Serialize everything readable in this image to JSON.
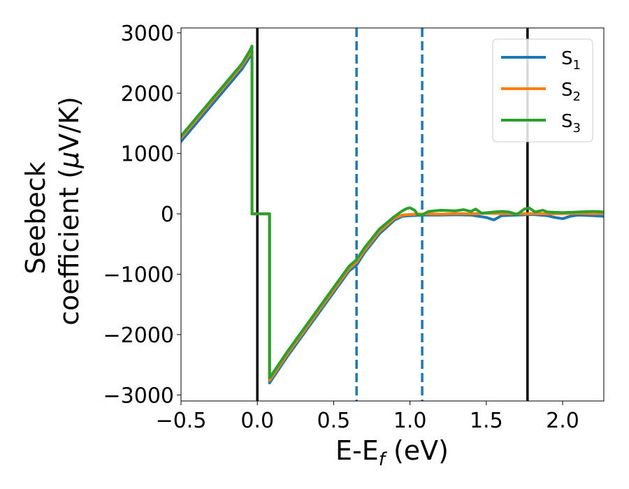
{
  "chart_data": {
    "type": "line",
    "xlabel": "E-E",
    "xlabel_sub": "f",
    "xlabel_unit": " (eV)",
    "ylabel_line1": "Seebeck",
    "ylabel_line2": "coefficient  (",
    "ylabel_mu": "μ",
    "ylabel_unit": "V/K)",
    "xlim": [
      -0.5,
      2.27
    ],
    "ylim": [
      -3100,
      3080
    ],
    "xticks": [
      -0.5,
      0.0,
      0.5,
      1.0,
      1.5,
      2.0
    ],
    "xtick_labels": [
      "−0.5",
      "0.0",
      "0.5",
      "1.0",
      "1.5",
      "2.0"
    ],
    "yticks": [
      -3000,
      -2000,
      -1000,
      0,
      1000,
      2000,
      3000
    ],
    "ytick_labels": [
      "−3000",
      "−2000",
      "−1000",
      "0",
      "1000",
      "2000",
      "3000"
    ],
    "grid": false,
    "legend_position": "top-right",
    "vlines": [
      {
        "x": 0.0,
        "style": "solid",
        "color": "#000000"
      },
      {
        "x": 1.77,
        "style": "solid",
        "color": "#000000"
      },
      {
        "x": 0.65,
        "style": "dashed",
        "color": "#1f77b4"
      },
      {
        "x": 1.08,
        "style": "dashed",
        "color": "#1f77b4"
      }
    ],
    "series": [
      {
        "name": "S",
        "sub": "1",
        "color": "#1f77b4",
        "points": [
          [
            -0.5,
            1200
          ],
          [
            -0.4,
            1500
          ],
          [
            -0.3,
            1800
          ],
          [
            -0.2,
            2100
          ],
          [
            -0.1,
            2400
          ],
          [
            -0.05,
            2600
          ],
          [
            -0.035,
            2620
          ],
          [
            -0.035,
            0
          ],
          [
            0.08,
            0
          ],
          [
            0.08,
            -2800
          ],
          [
            0.2,
            -2350
          ],
          [
            0.3,
            -2000
          ],
          [
            0.4,
            -1650
          ],
          [
            0.5,
            -1300
          ],
          [
            0.6,
            -950
          ],
          [
            0.65,
            -850
          ],
          [
            0.7,
            -650
          ],
          [
            0.8,
            -330
          ],
          [
            0.9,
            -100
          ],
          [
            0.95,
            -40
          ],
          [
            1.0,
            -30
          ],
          [
            1.1,
            -20
          ],
          [
            1.2,
            -20
          ],
          [
            1.3,
            -15
          ],
          [
            1.4,
            -20
          ],
          [
            1.5,
            -60
          ],
          [
            1.55,
            -100
          ],
          [
            1.6,
            -30
          ],
          [
            1.7,
            -20
          ],
          [
            1.8,
            -10
          ],
          [
            1.9,
            -30
          ],
          [
            1.95,
            -60
          ],
          [
            2.0,
            -80
          ],
          [
            2.05,
            -40
          ],
          [
            2.1,
            -20
          ],
          [
            2.2,
            -30
          ],
          [
            2.27,
            -40
          ]
        ]
      },
      {
        "name": "S",
        "sub": "2",
        "color": "#ff7f0e",
        "points": [
          [
            -0.5,
            1260
          ],
          [
            -0.4,
            1560
          ],
          [
            -0.3,
            1860
          ],
          [
            -0.2,
            2160
          ],
          [
            -0.1,
            2460
          ],
          [
            -0.05,
            2660
          ],
          [
            -0.035,
            2680
          ],
          [
            -0.035,
            0
          ],
          [
            0.08,
            0
          ],
          [
            0.08,
            -2760
          ],
          [
            0.2,
            -2310
          ],
          [
            0.3,
            -1960
          ],
          [
            0.4,
            -1610
          ],
          [
            0.5,
            -1260
          ],
          [
            0.6,
            -910
          ],
          [
            0.65,
            -800
          ],
          [
            0.7,
            -610
          ],
          [
            0.8,
            -290
          ],
          [
            0.9,
            -70
          ],
          [
            0.95,
            -20
          ],
          [
            1.0,
            -10
          ],
          [
            1.1,
            0
          ],
          [
            1.2,
            -5
          ],
          [
            1.3,
            5
          ],
          [
            1.4,
            0
          ],
          [
            1.5,
            10
          ],
          [
            1.6,
            5
          ],
          [
            1.7,
            0
          ],
          [
            1.8,
            5
          ],
          [
            1.9,
            0
          ],
          [
            2.0,
            5
          ],
          [
            2.1,
            10
          ],
          [
            2.2,
            5
          ],
          [
            2.27,
            10
          ]
        ]
      },
      {
        "name": "S",
        "sub": "3",
        "color": "#2ca02c",
        "points": [
          [
            -0.5,
            1290
          ],
          [
            -0.4,
            1590
          ],
          [
            -0.3,
            1890
          ],
          [
            -0.2,
            2190
          ],
          [
            -0.1,
            2490
          ],
          [
            -0.05,
            2700
          ],
          [
            -0.035,
            2780
          ],
          [
            -0.035,
            0
          ],
          [
            0.08,
            0
          ],
          [
            0.08,
            -2720
          ],
          [
            0.2,
            -2270
          ],
          [
            0.3,
            -1920
          ],
          [
            0.4,
            -1570
          ],
          [
            0.5,
            -1220
          ],
          [
            0.6,
            -870
          ],
          [
            0.65,
            -760
          ],
          [
            0.7,
            -570
          ],
          [
            0.8,
            -250
          ],
          [
            0.9,
            -40
          ],
          [
            0.95,
            50
          ],
          [
            0.98,
            90
          ],
          [
            1.0,
            100
          ],
          [
            1.03,
            60
          ],
          [
            1.05,
            -10
          ],
          [
            1.08,
            -20
          ],
          [
            1.12,
            40
          ],
          [
            1.2,
            60
          ],
          [
            1.3,
            50
          ],
          [
            1.35,
            70
          ],
          [
            1.4,
            40
          ],
          [
            1.43,
            80
          ],
          [
            1.47,
            10
          ],
          [
            1.55,
            30
          ],
          [
            1.6,
            40
          ],
          [
            1.65,
            30
          ],
          [
            1.7,
            -10
          ],
          [
            1.75,
            80
          ],
          [
            1.78,
            100
          ],
          [
            1.82,
            30
          ],
          [
            1.87,
            60
          ],
          [
            1.9,
            30
          ],
          [
            2.0,
            20
          ],
          [
            2.1,
            30
          ],
          [
            2.2,
            40
          ],
          [
            2.27,
            30
          ]
        ]
      }
    ]
  }
}
